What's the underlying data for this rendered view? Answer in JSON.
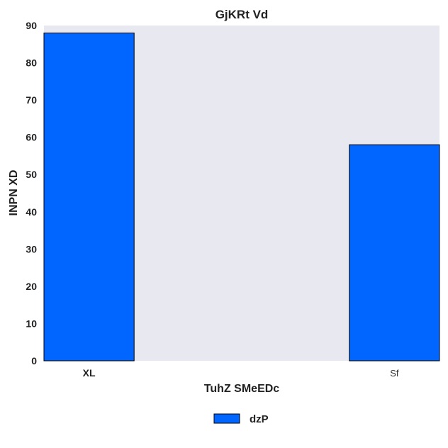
{
  "chart_data": {
    "type": "bar",
    "title": "GjKRt Vd",
    "xlabel": "TuhZ SMeEDc",
    "ylabel": "INPN XD",
    "categories": [
      "XL",
      "Sf"
    ],
    "series": [
      {
        "name": "dzP",
        "values": [
          88,
          58
        ]
      }
    ],
    "ylim": [
      0,
      90
    ],
    "yticks": [
      "0",
      "10",
      "20",
      "30",
      "40",
      "50",
      "60",
      "70",
      "80",
      "90"
    ],
    "grid": false,
    "legend_position": "bottom-center",
    "colors": {
      "bar": "#0066ff",
      "bar_edge": "#000000",
      "plot_background": "#e8e8f0",
      "page_background": "#ffffff"
    }
  }
}
